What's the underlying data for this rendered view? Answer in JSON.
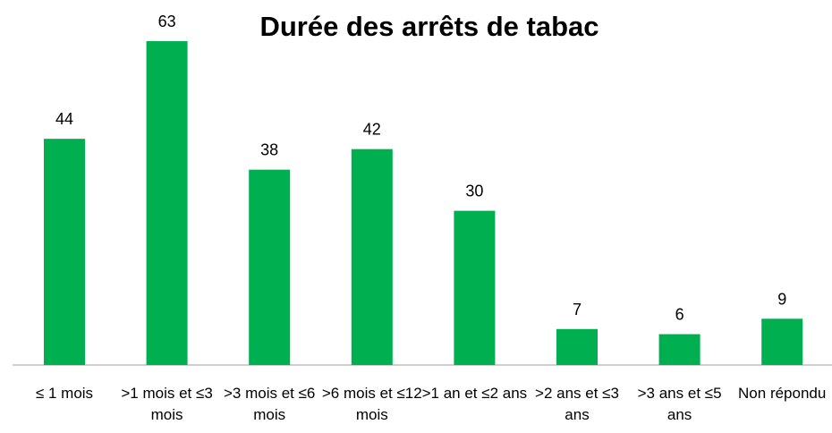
{
  "chart_data": {
    "type": "bar",
    "title": "Durée des arrêts de tabac",
    "categories": [
      "≤ 1 mois",
      ">1 mois et ≤3 mois",
      ">3 mois et ≤6 mois",
      ">6 mois et ≤12 mois",
      ">1 an et ≤2 ans",
      ">2 ans et ≤3 ans",
      ">3 ans et ≤5 ans",
      "Non répondu"
    ],
    "values": [
      44,
      63,
      38,
      42,
      30,
      7,
      6,
      9
    ],
    "color": "#00b050"
  }
}
